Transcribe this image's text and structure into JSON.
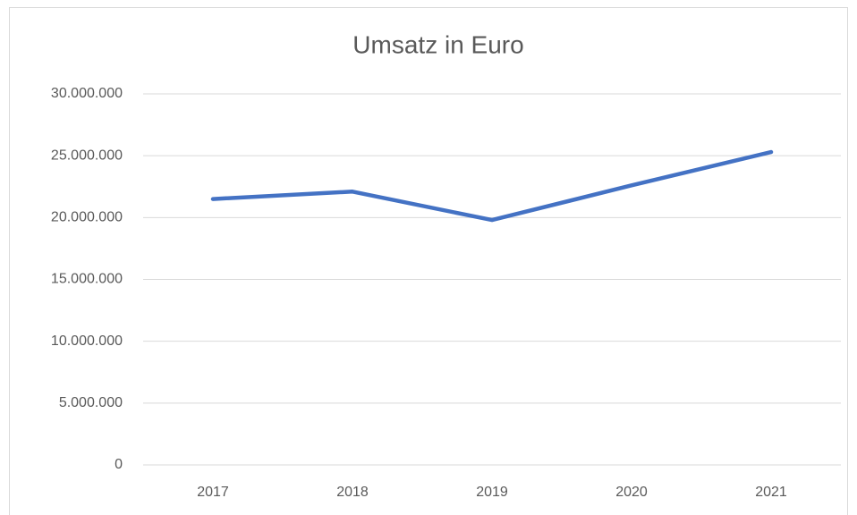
{
  "chart_data": {
    "type": "line",
    "title": "Umsatz in Euro",
    "categories": [
      "2017",
      "2018",
      "2019",
      "2020",
      "2021"
    ],
    "series": [
      {
        "name": "Umsatz",
        "color": "#4472c4",
        "values": [
          21500000,
          22100000,
          19800000,
          22600000,
          25300000
        ]
      }
    ],
    "ylim": [
      0,
      30000000
    ],
    "yticks": [
      0,
      {
        "value": 5000000,
        "label": "5.000.000"
      },
      {
        "value": 10000000,
        "label": "10.000.000"
      },
      {
        "value": 15000000,
        "label": "15.000.000"
      },
      {
        "value": 20000000,
        "label": "20.000.000"
      },
      {
        "value": 25000000,
        "label": "25.000.000"
      },
      {
        "value": 30000000,
        "label": "30.000.000"
      }
    ],
    "grid": true
  }
}
